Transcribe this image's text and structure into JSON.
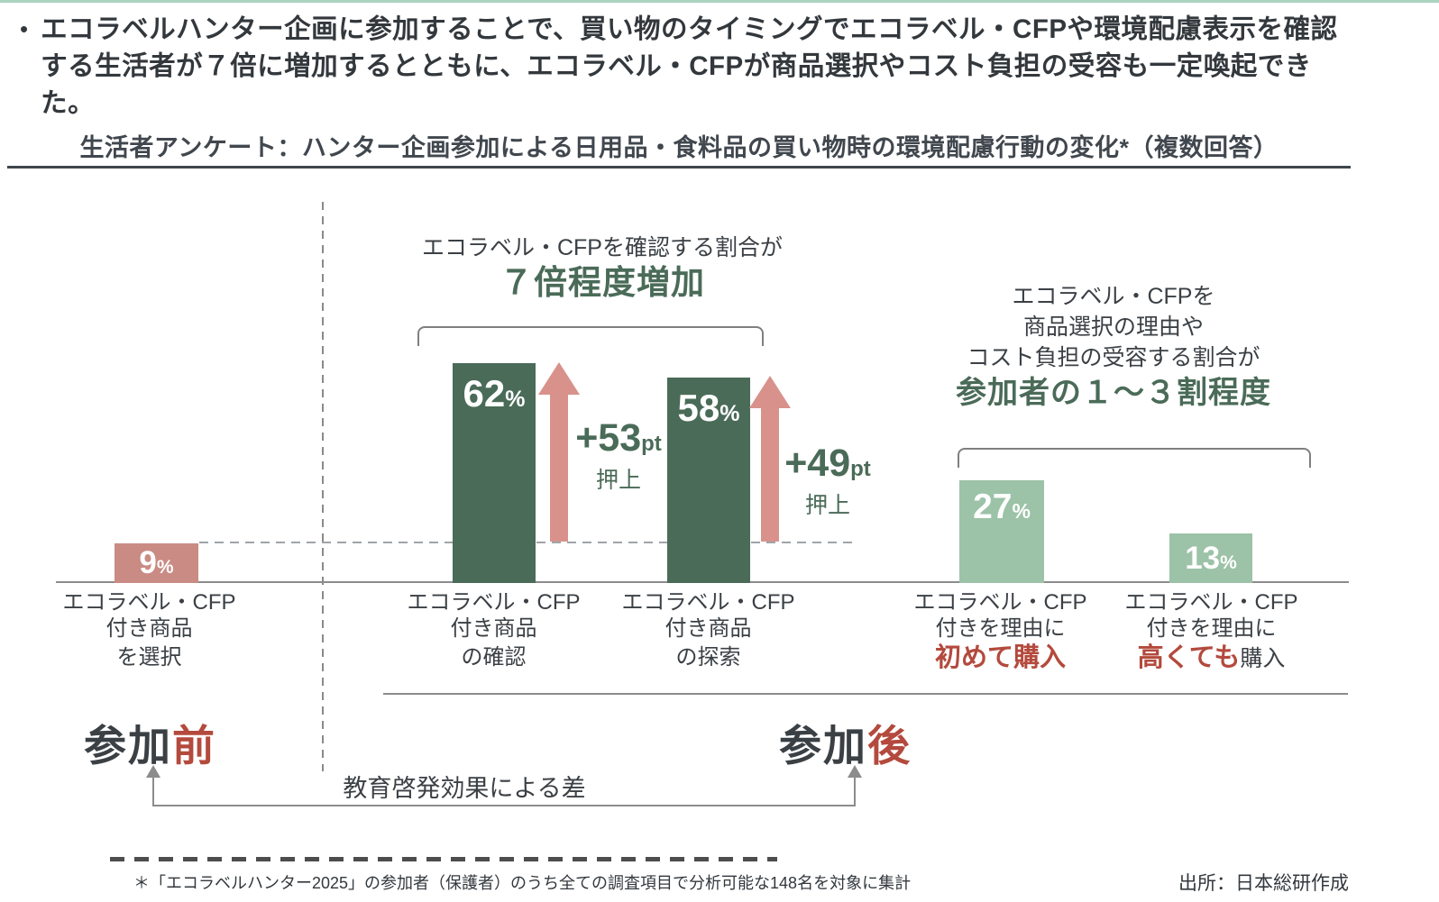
{
  "colors": {
    "dark_green": "#4a6b58",
    "light_green": "#9cc2a7",
    "pink_bar": "#c98b84",
    "salmon_arrow": "#d8928b",
    "red_text": "#b34a3d",
    "text_dark": "#3b4045",
    "line_gray": "#8c8c8c",
    "top_accent": "#abd3c0"
  },
  "bullet": {
    "marker": "•",
    "text": "エコラベルハンター企画に参加することで、買い物のタイミングでエコラベル・CFPや環境配慮表示を確認する生活者が７倍に増加するとともに、エコラベル・CFPが商品選択やコスト負担の受容も一定喚起できた。"
  },
  "chart_title": "生活者アンケート：ハンター企画参加による日用品・食料品の買い物時の環境配慮行動の変化*（複数回答）",
  "chart_data": {
    "type": "bar",
    "unit": "%",
    "title": "生活者アンケート：ハンター企画参加による日用品・食料品の買い物時の環境配慮行動の変化*（複数回答）",
    "categories": [
      "エコラベル・CFP付き商品を選択（参加前）",
      "エコラベル・CFP付き商品の確認（参加後）",
      "エコラベル・CFP付き商品の探索（参加後）",
      "エコラベル・CFP付きを理由に初めて購入（参加後）",
      "エコラベル・CFP付きを理由に高くても購入（参加後）"
    ],
    "values": [
      9,
      62,
      58,
      27,
      13
    ],
    "bar_colors": [
      "#c98b84",
      "#4a6b58",
      "#4a6b58",
      "#9cc2a7",
      "#9cc2a7"
    ],
    "baseline": {
      "value": 9,
      "style": "dashed"
    },
    "ylim": [
      0,
      70
    ],
    "grid": false,
    "legend": false,
    "xlabel": "",
    "ylabel": "",
    "bars": [
      {
        "value": "9",
        "suffix": "%",
        "label1": "エコラベル・CFP",
        "label2": "付き商品",
        "label3_em": "",
        "label3": "を選択"
      },
      {
        "value": "62",
        "suffix": "%",
        "label1": "エコラベル・CFP",
        "label2": "付き商品",
        "label3_em": "",
        "label3": "の確認"
      },
      {
        "value": "58",
        "suffix": "%",
        "label1": "エコラベル・CFP",
        "label2": "付き商品",
        "label3_em": "",
        "label3": "の探索"
      },
      {
        "value": "27",
        "suffix": "%",
        "label1": "エコラベル・CFP",
        "label2": "付きを理由に",
        "label3_em": "初めて購入",
        "label3": ""
      },
      {
        "value": "13",
        "suffix": "%",
        "label1": "エコラベル・CFP",
        "label2": "付きを理由に",
        "label3_em": "高くても",
        "label3": "購入"
      }
    ],
    "deltas": [
      {
        "label": "+53",
        "unit": "pt",
        "note": "押上"
      },
      {
        "label": "+49",
        "unit": "pt",
        "note": "押上"
      }
    ]
  },
  "annotations": {
    "check_ratio": {
      "line1": "エコラベル・CFPを確認する割合が",
      "line2": "７倍程度増加"
    },
    "purchase_ratio": {
      "line1": "エコラベル・CFPを",
      "line2": "商品選択の理由や",
      "line3": "コスト負担の受容する割合が",
      "line4": "参加者の１～３割程度"
    }
  },
  "phase_labels": {
    "before_prefix": "参加",
    "before_suffix": "前",
    "after_prefix": "参加",
    "after_suffix": "後",
    "effect_note": "教育啓発効果による差"
  },
  "footer": {
    "footnote": "＊「エコラベルハンター2025」の参加者（保護者）のうち全ての調査項目で分析可能な148名を対象に集計",
    "source": "出所：日本総研作成"
  }
}
